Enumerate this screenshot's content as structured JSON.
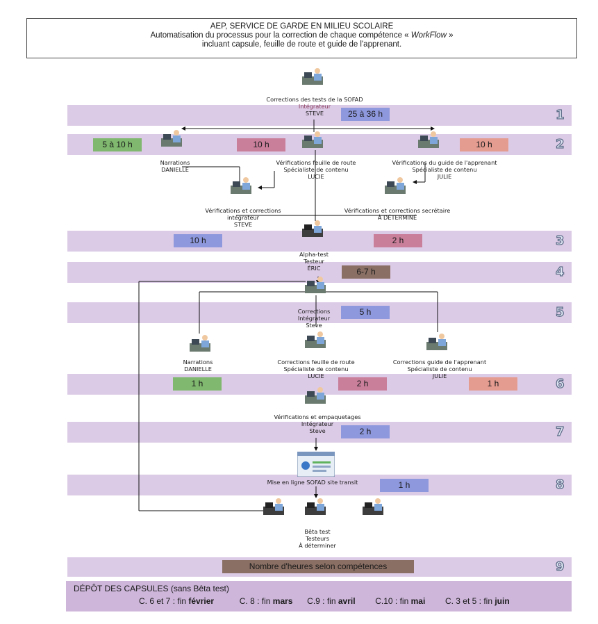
{
  "title": {
    "line1": "AEP, SERVICE DE GARDE EN MILIEU SCOLAIRE",
    "line2_prefix": "Automatisation du processus pour la correction de chaque compétence «",
    "line2_italic": "WorkFlow",
    "line2_suffix": "»",
    "line3": "incluant capsule, feuille de route et guide de l'apprenant."
  },
  "steps": [
    "1",
    "2",
    "3",
    "4",
    "5",
    "6",
    "7",
    "8",
    "9"
  ],
  "hours": {
    "s1": "25 à 36 h",
    "s2_a": "5 à 10 h",
    "s2_b": "10 h",
    "s2_c": "10 h",
    "s3_a": "10 h",
    "s3_b": "2 h",
    "s4": "6-7 h",
    "s5": "5 h",
    "s6_a": "1 h",
    "s6_b": "2 h",
    "s6_c": "1 h",
    "s7": "2 h",
    "s8": "1 h",
    "s9": "Nombre d'heures selon compétences"
  },
  "labels": {
    "corrections_sofad": [
      "Corrections des tests de la SOFAD",
      "Intégrateur",
      "STEVE"
    ],
    "narrations_1": [
      "Narrations",
      "DANIELLE"
    ],
    "verif_feuille": [
      "Vérifications feuille de route",
      "Spécialiste de contenu",
      "LUCIE"
    ],
    "verif_guide": [
      "Vérifications du guide de l'apprenant",
      "Spécialiste de contenu",
      "JULIE"
    ],
    "verif_integrateur": [
      "Vérifications et corrections",
      "intégrateur",
      "STEVE"
    ],
    "verif_secretaire": [
      "Vérifications et corrections secrétaire",
      "À DÉTERMINÉ"
    ],
    "alpha": [
      "Alpha-test",
      "Testeur",
      "ÉRIC"
    ],
    "corrections_int": [
      "Corrections",
      "Intégrateur",
      "Steve"
    ],
    "narrations_2": [
      "Narrations",
      "DANIELLE"
    ],
    "corr_feuille": [
      "Corrections feuille de route",
      "Spécialiste de contenu",
      "LUCIE"
    ],
    "corr_guide": [
      "Corrections guide de l'apprenant",
      "Spécialiste de contenu",
      "JULIE"
    ],
    "verif_empaq": [
      "Vérifications et empaquetages",
      "Intégrateur",
      "Steve"
    ],
    "mise_en_ligne": [
      "Mise en ligne SOFAD site transit"
    ],
    "beta": [
      "Bêta test",
      "Testeurs",
      "À déterminer"
    ]
  },
  "footer": {
    "title": "DÉPÔT DES CAPSULES (sans Bêta test)",
    "items": [
      {
        "prefix": "C. 6 et 7 : fin ",
        "bold": "février"
      },
      {
        "prefix": "C. 8 : fin ",
        "bold": "mars"
      },
      {
        "prefix": "C.9 : fin ",
        "bold": "avril"
      },
      {
        "prefix": "C.10 : fin ",
        "bold": "mai"
      },
      {
        "prefix": "C. 3 et 5 : fin ",
        "bold": "juin"
      }
    ]
  }
}
